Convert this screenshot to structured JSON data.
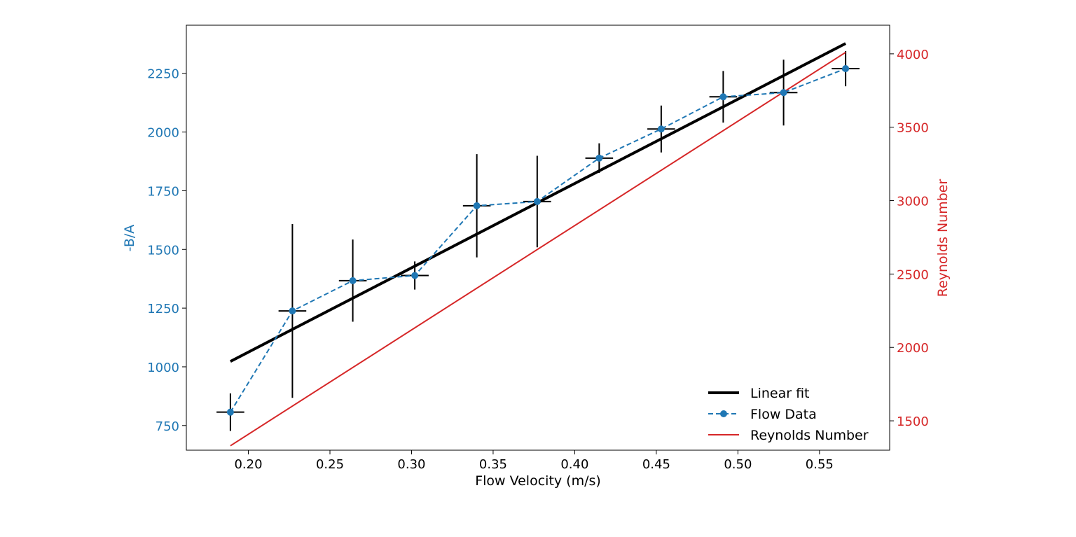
{
  "chart_data": {
    "type": "line",
    "xlabel": "Flow Velocity (m/s)",
    "ylabel_left": "-B/A",
    "ylabel_right": "Reynolds Number",
    "xlim": [
      0.162,
      0.593
    ],
    "ylim_left": [
      645,
      2455
    ],
    "ylim_right": [
      1300,
      4195
    ],
    "x_ticks": [
      "0.20",
      "0.25",
      "0.30",
      "0.35",
      "0.40",
      "0.45",
      "0.50",
      "0.55"
    ],
    "y_left_ticks": [
      "750",
      "1000",
      "1250",
      "1500",
      "1750",
      "2000",
      "2250"
    ],
    "y_right_ticks": [
      "1500",
      "2000",
      "2500",
      "3000",
      "3500",
      "4000"
    ],
    "grid": false,
    "legend_position": "lower-right",
    "colors": {
      "flow": "#1f77b4",
      "fit": "#000000",
      "reynolds": "#d62728",
      "errorbar": "#000000"
    },
    "series": [
      {
        "name": "Linear fit",
        "axis": "left",
        "style": "solid-thick",
        "x": [
          0.189,
          0.566
        ],
        "y": [
          1023,
          2377
        ]
      },
      {
        "name": "Flow Data",
        "axis": "left",
        "style": "dashed-markers",
        "x": [
          0.189,
          0.227,
          0.264,
          0.302,
          0.34,
          0.377,
          0.415,
          0.453,
          0.491,
          0.528,
          0.566
        ],
        "y": [
          807,
          1238,
          1367,
          1389,
          1686,
          1704,
          1889,
          2013,
          2150,
          2168,
          2270
        ],
        "yerr": [
          80,
          370,
          175,
          60,
          220,
          195,
          63,
          100,
          110,
          140,
          75
        ],
        "xerr": [
          0.0085,
          0.0085,
          0.0085,
          0.0085,
          0.0085,
          0.0085,
          0.0085,
          0.0085,
          0.0085,
          0.0085,
          0.0085
        ]
      },
      {
        "name": "Reynolds Number",
        "axis": "right",
        "style": "solid-thin",
        "x": [
          0.189,
          0.566
        ],
        "y": [
          1330,
          4010
        ]
      }
    ]
  }
}
